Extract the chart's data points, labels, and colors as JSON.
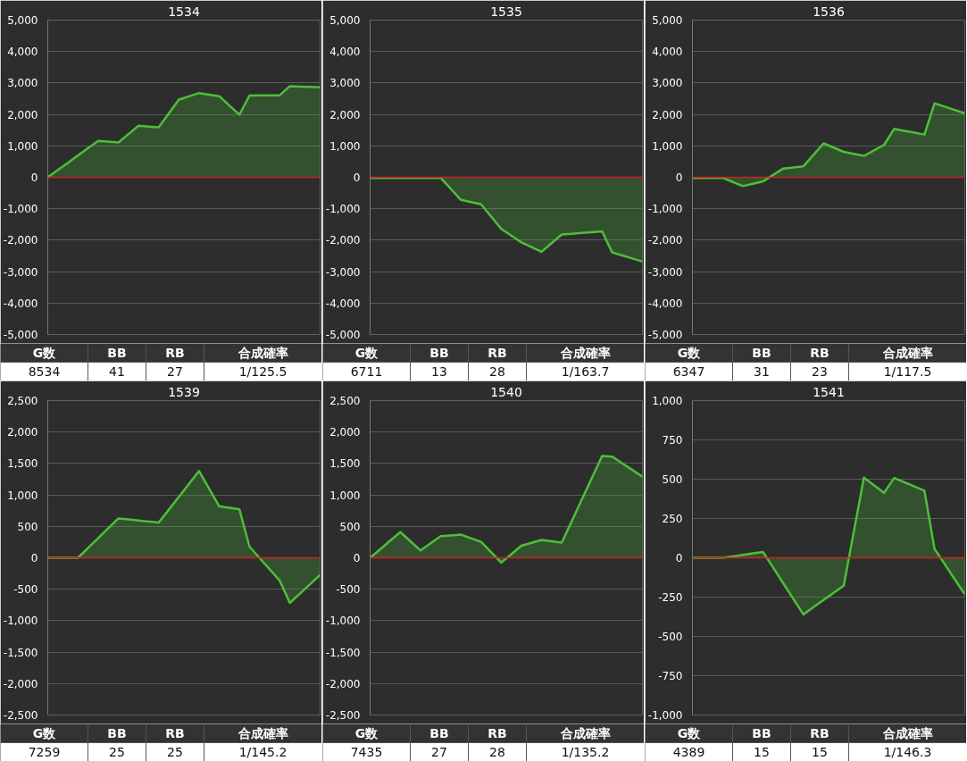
{
  "chart_data": [
    {
      "type": "area",
      "title": "1534",
      "categories": [
        null,
        null,
        null,
        null,
        null,
        null,
        null,
        null,
        null,
        null,
        null,
        null,
        null,
        null,
        null,
        null,
        null,
        null,
        null,
        null,
        null,
        null,
        null,
        null,
        null,
        null,
        null,
        null
      ],
      "ylim": [
        -5000,
        5000
      ],
      "yticks": [
        {
          "value": -5000,
          "label": "-5,000"
        },
        {
          "value": -4000,
          "label": "-4,000"
        },
        {
          "value": -3000,
          "label": "-3,000"
        },
        {
          "value": -2000,
          "label": "-2,000"
        },
        {
          "value": -1000,
          "label": "-1,000"
        },
        {
          "value": 0,
          "label": "0"
        },
        {
          "value": 1000,
          "label": "1,000"
        },
        {
          "value": 2000,
          "label": "2,000"
        },
        {
          "value": 3000,
          "label": "3,000"
        },
        {
          "value": 4000,
          "label": "4,000"
        },
        {
          "value": 5000,
          "label": "5,000"
        }
      ],
      "grid": "y",
      "tick_labels": "y",
      "series": [
        {
          "color": "#4cc038",
          "values": [
            0,
            232,
            464,
            696,
            928,
            1160,
            1135,
            1110,
            1375,
            1640,
            1615,
            1590,
            2030,
            2470,
            2575,
            2680,
            2630,
            2580,
            2285,
            1990,
            2600,
            2603,
            2607,
            2610,
            2900,
            2887,
            2873,
            2860
          ]
        }
      ],
      "ref_lines": [
        {
          "axis": "y",
          "value": 0,
          "color": "#cc2222"
        }
      ],
      "annotations": [
        "G数",
        "BB",
        "RB",
        "合成確率",
        "8534",
        "41",
        "27",
        "1/125.5"
      ]
    },
    {
      "type": "area",
      "title": "1535",
      "categories": [
        null,
        null,
        null,
        null,
        null,
        null,
        null,
        null,
        null,
        null,
        null,
        null,
        null,
        null,
        null,
        null,
        null,
        null,
        null,
        null,
        null,
        null,
        null,
        null,
        null,
        null,
        null,
        null
      ],
      "ylim": [
        -5000,
        5000
      ],
      "yticks": [
        {
          "value": -5000,
          "label": "-5,000"
        },
        {
          "value": -4000,
          "label": "-4,000"
        },
        {
          "value": -3000,
          "label": "-3,000"
        },
        {
          "value": -2000,
          "label": "-2,000"
        },
        {
          "value": -1000,
          "label": "-1,000"
        },
        {
          "value": 0,
          "label": "0"
        },
        {
          "value": 1000,
          "label": "1,000"
        },
        {
          "value": 2000,
          "label": "2,000"
        },
        {
          "value": 3000,
          "label": "3,000"
        },
        {
          "value": 4000,
          "label": "4,000"
        },
        {
          "value": 5000,
          "label": "5,000"
        }
      ],
      "grid": "y",
      "tick_labels": "y",
      "series": [
        {
          "color": "#4cc038",
          "values": [
            -20,
            -20,
            -20,
            -20,
            -20,
            -20,
            -20,
            -20,
            -370,
            -720,
            -790,
            -860,
            -1250,
            -1640,
            -1855,
            -2070,
            -2220,
            -2370,
            -2095,
            -1820,
            -1795,
            -1770,
            -1745,
            -1720,
            -2390,
            -2487,
            -2583,
            -2680
          ]
        }
      ],
      "ref_lines": [
        {
          "axis": "y",
          "value": 0,
          "color": "#cc2222"
        }
      ],
      "annotations": [
        "G数",
        "BB",
        "RB",
        "合成確率",
        "6711",
        "13",
        "28",
        "1/163.7"
      ]
    },
    {
      "type": "area",
      "title": "1536",
      "categories": [
        null,
        null,
        null,
        null,
        null,
        null,
        null,
        null,
        null,
        null,
        null,
        null,
        null,
        null,
        null,
        null,
        null,
        null,
        null,
        null,
        null,
        null,
        null,
        null,
        null,
        null,
        null,
        null
      ],
      "ylim": [
        -5000,
        5000
      ],
      "yticks": [
        {
          "value": -5000,
          "label": "-5,000"
        },
        {
          "value": -4000,
          "label": "-4,000"
        },
        {
          "value": -3000,
          "label": "-3,000"
        },
        {
          "value": -2000,
          "label": "-2,000"
        },
        {
          "value": -1000,
          "label": "-1,000"
        },
        {
          "value": 0,
          "label": "0"
        },
        {
          "value": 1000,
          "label": "1,000"
        },
        {
          "value": 2000,
          "label": "2,000"
        },
        {
          "value": 3000,
          "label": "3,000"
        },
        {
          "value": 4000,
          "label": "4,000"
        },
        {
          "value": 5000,
          "label": "5,000"
        }
      ],
      "grid": "y",
      "tick_labels": "y",
      "series": [
        {
          "color": "#4cc038",
          "values": [
            -20,
            -20,
            -20,
            -20,
            -150,
            -280,
            -205,
            -130,
            75,
            280,
            315,
            350,
            715,
            1080,
            945,
            810,
            745,
            680,
            855,
            1030,
            1540,
            1480,
            1420,
            1360,
            2350,
            2247,
            2143,
            2040
          ]
        }
      ],
      "ref_lines": [
        {
          "axis": "y",
          "value": 0,
          "color": "#cc2222"
        }
      ],
      "annotations": [
        "G数",
        "BB",
        "RB",
        "合成確率",
        "6347",
        "31",
        "23",
        "1/117.5"
      ]
    },
    {
      "type": "area",
      "title": "1539",
      "categories": [
        null,
        null,
        null,
        null,
        null,
        null,
        null,
        null,
        null,
        null,
        null,
        null,
        null,
        null,
        null,
        null,
        null,
        null,
        null,
        null,
        null,
        null,
        null,
        null,
        null,
        null,
        null,
        null
      ],
      "ylim": [
        -2500,
        2500
      ],
      "yticks": [
        {
          "value": -2500,
          "label": "-2,500"
        },
        {
          "value": -2000,
          "label": "-2,000"
        },
        {
          "value": -1500,
          "label": "-1,500"
        },
        {
          "value": -1000,
          "label": "-1,000"
        },
        {
          "value": -500,
          "label": "-500"
        },
        {
          "value": 0,
          "label": "0"
        },
        {
          "value": 500,
          "label": "500"
        },
        {
          "value": 1000,
          "label": "1,000"
        },
        {
          "value": 1500,
          "label": "1,500"
        },
        {
          "value": 2000,
          "label": "2,000"
        },
        {
          "value": 2500,
          "label": "2,500"
        }
      ],
      "grid": "y",
      "tick_labels": "y",
      "series": [
        {
          "color": "#4cc038",
          "values": [
            0,
            0,
            0,
            0,
            157,
            313,
            470,
            626,
            610,
            593,
            577,
            560,
            765,
            970,
            1175,
            1380,
            1100,
            820,
            795,
            770,
            177,
            -3,
            -184,
            -364,
            -717,
            -569,
            -421,
            -273
          ]
        }
      ],
      "ref_lines": [
        {
          "axis": "y",
          "value": 0,
          "color": "#cc2222"
        }
      ],
      "annotations": [
        "G数",
        "BB",
        "RB",
        "合成確率",
        "7259",
        "25",
        "25",
        "1/145.2"
      ]
    },
    {
      "type": "area",
      "title": "1540",
      "categories": [
        null,
        null,
        null,
        null,
        null,
        null,
        null,
        null,
        null,
        null,
        null,
        null,
        null,
        null,
        null,
        null,
        null,
        null,
        null,
        null,
        null,
        null,
        null,
        null,
        null,
        null,
        null,
        null
      ],
      "ylim": [
        -2500,
        2500
      ],
      "yticks": [
        {
          "value": -2500,
          "label": "-2,500"
        },
        {
          "value": -2000,
          "label": "-2,000"
        },
        {
          "value": -1500,
          "label": "-1,500"
        },
        {
          "value": -1000,
          "label": "-1,000"
        },
        {
          "value": -500,
          "label": "-500"
        },
        {
          "value": 0,
          "label": "0"
        },
        {
          "value": 500,
          "label": "500"
        },
        {
          "value": 1000,
          "label": "1,000"
        },
        {
          "value": 1500,
          "label": "1,500"
        },
        {
          "value": 2000,
          "label": "2,000"
        },
        {
          "value": 2500,
          "label": "2,500"
        }
      ],
      "grid": "y",
      "tick_labels": "y",
      "series": [
        {
          "color": "#4cc038",
          "values": [
            0,
            136,
            273,
            409,
            263,
            116,
            230,
            343,
            356,
            369,
            311,
            253,
            89,
            -76,
            58,
            192,
            238,
            283,
            263,
            242,
            587,
            931,
            1276,
            1620,
            1610,
            1503,
            1397,
            1290
          ]
        }
      ],
      "ref_lines": [
        {
          "axis": "y",
          "value": 0,
          "color": "#cc2222"
        }
      ],
      "annotations": [
        "G数",
        "BB",
        "RB",
        "合成確率",
        "7435",
        "27",
        "28",
        "1/135.2"
      ]
    },
    {
      "type": "area",
      "title": "1541",
      "categories": [
        null,
        null,
        null,
        null,
        null,
        null,
        null,
        null,
        null,
        null,
        null,
        null,
        null,
        null,
        null,
        null,
        null,
        null,
        null,
        null,
        null,
        null,
        null,
        null,
        null,
        null,
        null,
        null
      ],
      "ylim": [
        -1000,
        1000
      ],
      "yticks": [
        {
          "value": -1000,
          "label": "-1,000"
        },
        {
          "value": -750,
          "label": "-750"
        },
        {
          "value": -500,
          "label": "-500"
        },
        {
          "value": -250,
          "label": "-250"
        },
        {
          "value": 0,
          "label": "0"
        },
        {
          "value": 250,
          "label": "250"
        },
        {
          "value": 500,
          "label": "500"
        },
        {
          "value": 750,
          "label": "750"
        },
        {
          "value": 1000,
          "label": "1,000"
        }
      ],
      "grid": "y",
      "tick_labels": "y",
      "series": [
        {
          "color": "#4cc038",
          "values": [
            0,
            0,
            0,
            0,
            9,
            19,
            28,
            37,
            -62,
            -162,
            -261,
            -360,
            -314,
            -269,
            -223,
            -177,
            167,
            510,
            462,
            413,
            508,
            481,
            454,
            427,
            57,
            -39,
            -136,
            -232
          ]
        }
      ],
      "ref_lines": [
        {
          "axis": "y",
          "value": 0,
          "color": "#cc2222"
        }
      ],
      "annotations": [
        "G数",
        "BB",
        "RB",
        "合成確率",
        "4389",
        "15",
        "15",
        "1/146.3"
      ]
    }
  ]
}
